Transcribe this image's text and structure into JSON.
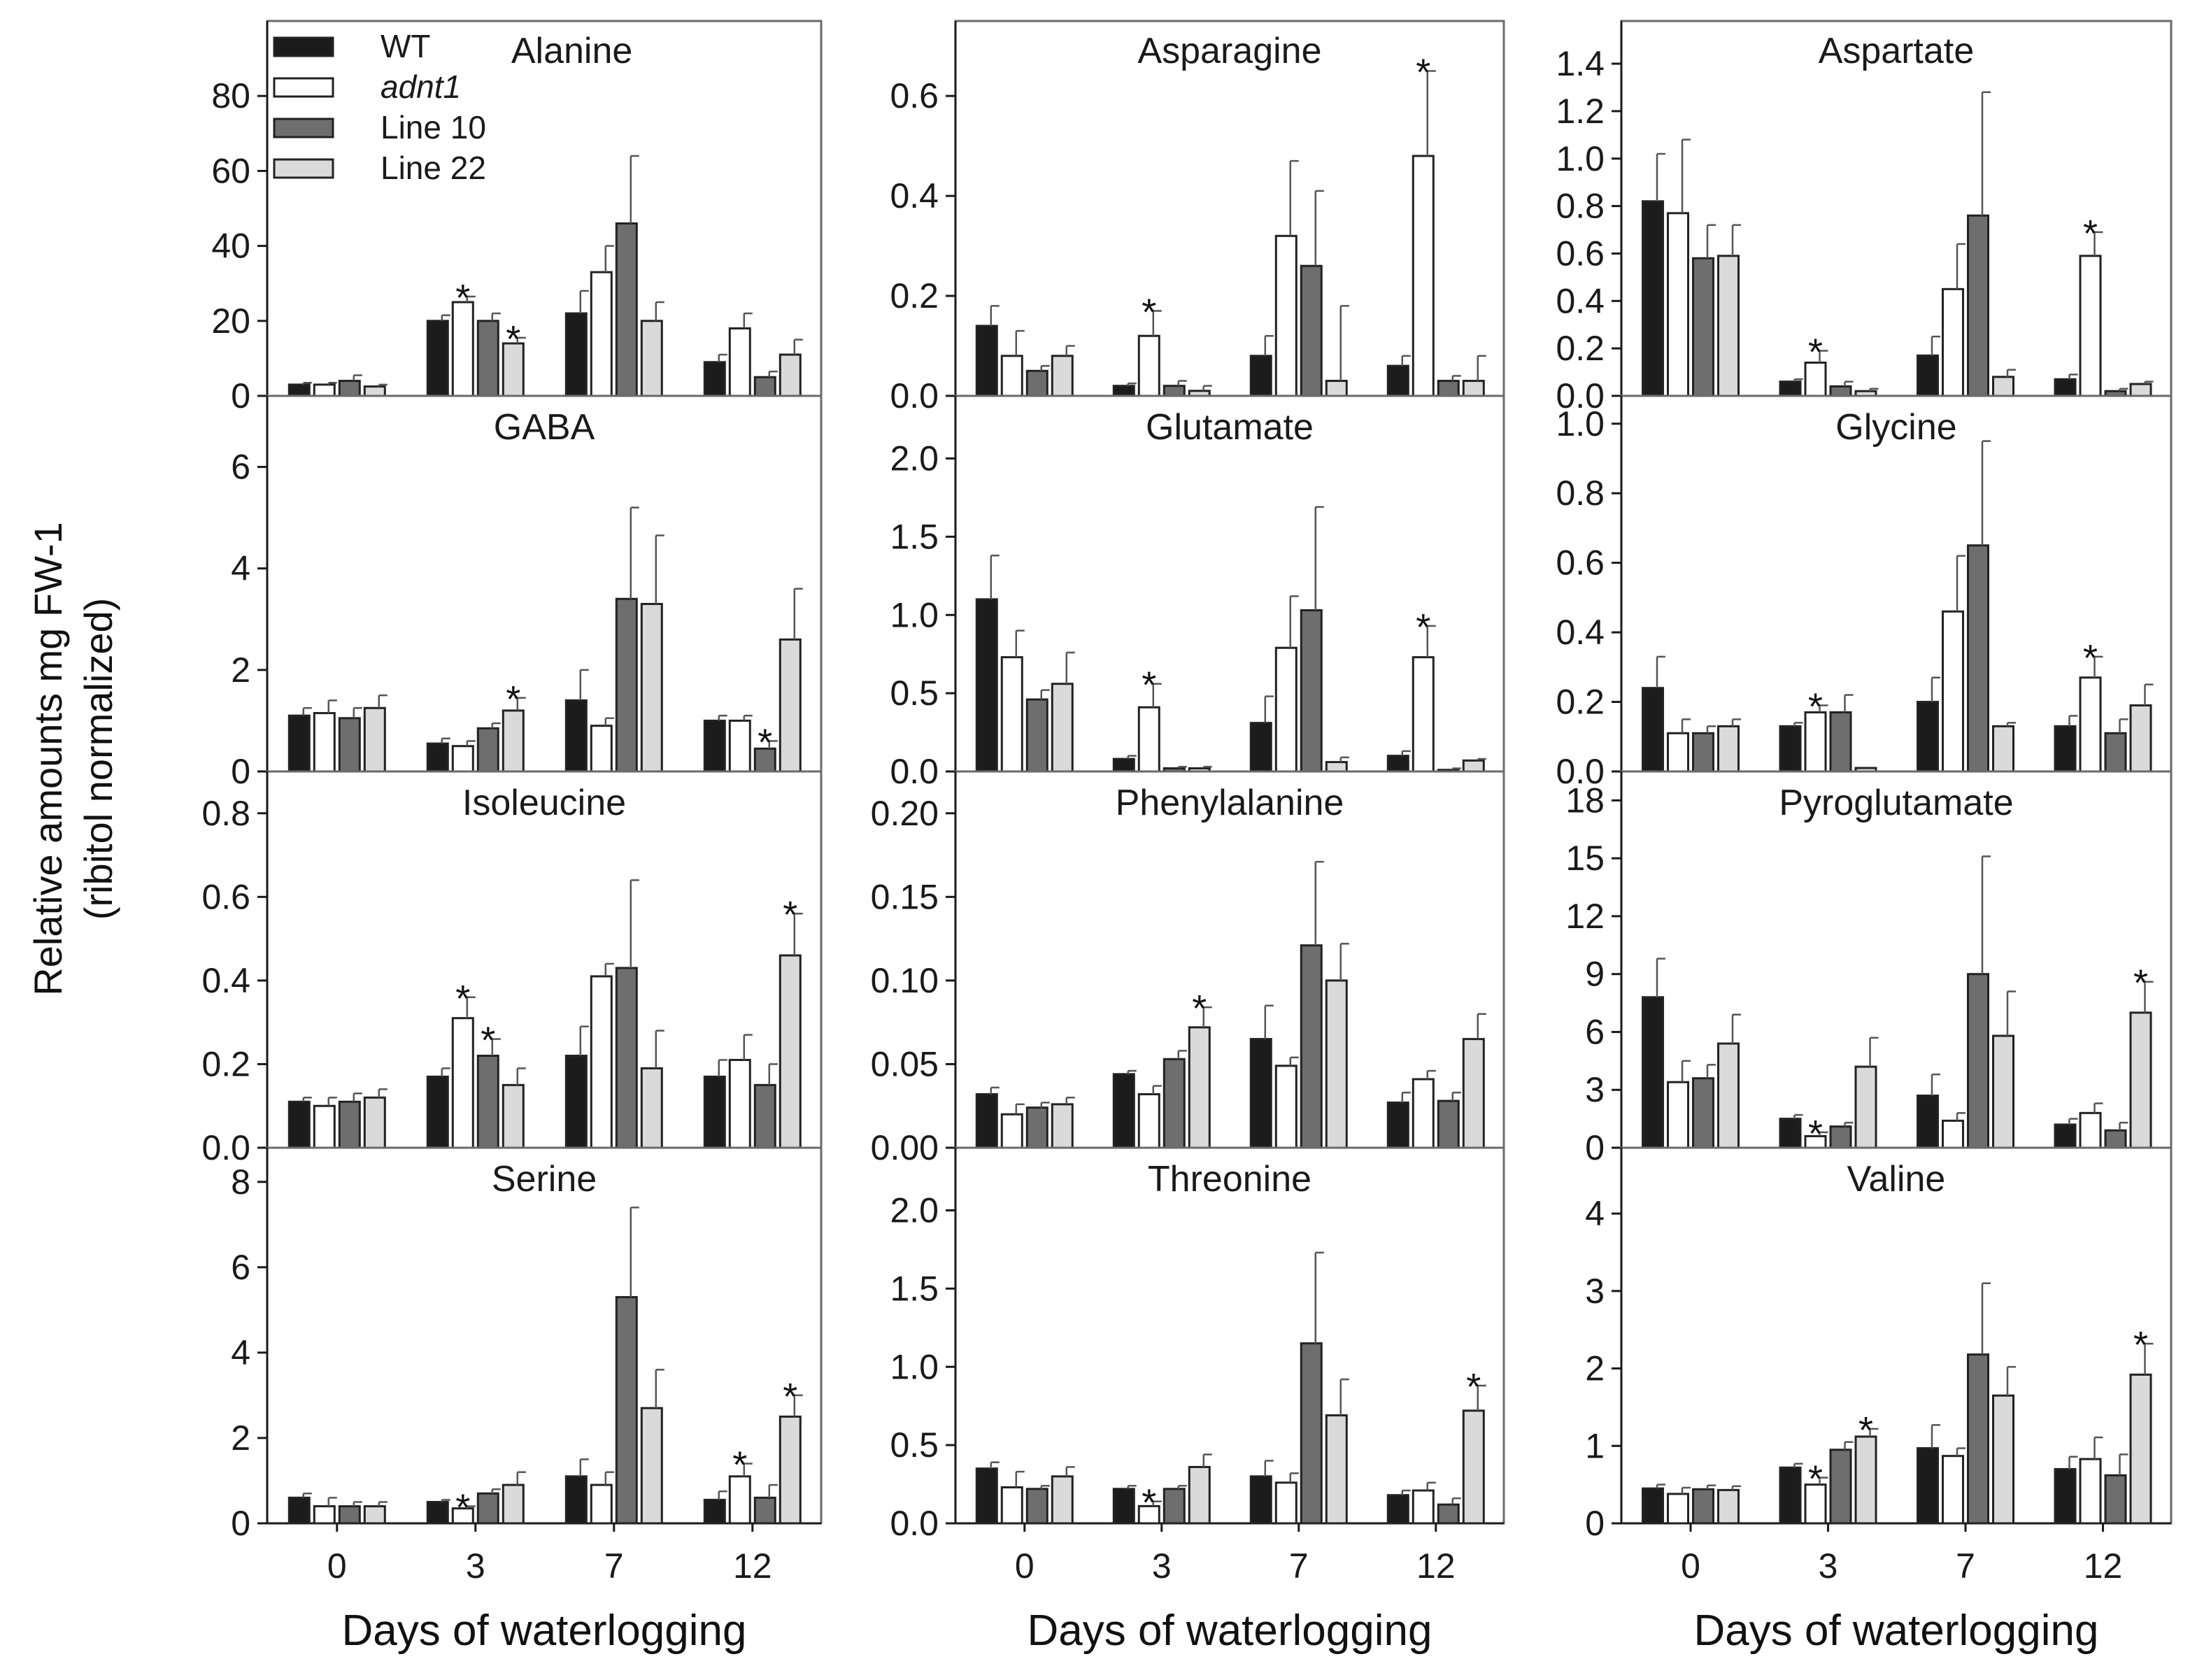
{
  "chart_data": {
    "type": "bar",
    "ylabel_line1": "Relative amounts mg FW-1",
    "ylabel_line2": "(ribitol normalized)",
    "xlabel": "Days of waterlogging",
    "categories": [
      "0",
      "3",
      "7",
      "12"
    ],
    "series": [
      {
        "name": "WT",
        "italic": false,
        "fill": "#1c1c1c"
      },
      {
        "name": "adnt1",
        "italic": true,
        "fill": "#ffffff"
      },
      {
        "name": "Line 10",
        "italic": false,
        "fill": "#6e6e6e"
      },
      {
        "name": "Line 22",
        "italic": false,
        "fill": "#dadada"
      }
    ],
    "panels": [
      {
        "title": "Alanine",
        "ylim": [
          0,
          100
        ],
        "yticks": [
          "0",
          "20",
          "40",
          "60",
          "80"
        ],
        "yvals": [
          0,
          20,
          40,
          60,
          80
        ],
        "values": [
          [
            3,
            3,
            4,
            2.5
          ],
          [
            20,
            25,
            20,
            14
          ],
          [
            22,
            33,
            46,
            20
          ],
          [
            9,
            18,
            5,
            11
          ]
        ],
        "errors": [
          [
            0.5,
            0.5,
            1.5,
            0.5
          ],
          [
            1.5,
            1.5,
            2,
            1.5
          ],
          [
            6,
            7,
            18,
            5
          ],
          [
            2,
            4,
            1.5,
            4
          ]
        ],
        "stars": [
          [
            false,
            false,
            false,
            false
          ],
          [
            false,
            true,
            false,
            true
          ],
          [
            false,
            false,
            false,
            false
          ],
          [
            false,
            false,
            false,
            false
          ]
        ]
      },
      {
        "title": "Asparagine",
        "ylim": [
          0,
          0.75
        ],
        "yticks": [
          "0.0",
          "0.2",
          "0.4",
          "0.6"
        ],
        "yvals": [
          0,
          0.2,
          0.4,
          0.6
        ],
        "values": [
          [
            0.14,
            0.08,
            0.05,
            0.08
          ],
          [
            0.02,
            0.12,
            0.02,
            0.01
          ],
          [
            0.08,
            0.32,
            0.26,
            0.03
          ],
          [
            0.06,
            0.48,
            0.03,
            0.03
          ]
        ],
        "errors": [
          [
            0.04,
            0.05,
            0.01,
            0.02
          ],
          [
            0.005,
            0.05,
            0.01,
            0.01
          ],
          [
            0.04,
            0.15,
            0.15,
            0.15
          ],
          [
            0.02,
            0.17,
            0.01,
            0.05
          ]
        ],
        "stars": [
          [
            false,
            false,
            false,
            false
          ],
          [
            false,
            true,
            false,
            false
          ],
          [
            false,
            false,
            false,
            false
          ],
          [
            false,
            true,
            false,
            false
          ]
        ]
      },
      {
        "title": "Aspartate",
        "ylim": [
          0,
          1.58
        ],
        "yticks": [
          "0.0",
          "0.2",
          "0.4",
          "0.6",
          "0.8",
          "1.0",
          "1.2",
          "1.4"
        ],
        "yvals": [
          0,
          0.2,
          0.4,
          0.6,
          0.8,
          1.0,
          1.2,
          1.4
        ],
        "values": [
          [
            0.82,
            0.77,
            0.58,
            0.59
          ],
          [
            0.06,
            0.14,
            0.04,
            0.02
          ],
          [
            0.17,
            0.45,
            0.76,
            0.08
          ],
          [
            0.07,
            0.59,
            0.02,
            0.05
          ]
        ],
        "errors": [
          [
            0.2,
            0.31,
            0.14,
            0.13
          ],
          [
            0.01,
            0.05,
            0.02,
            0.01
          ],
          [
            0.08,
            0.19,
            0.52,
            0.03
          ],
          [
            0.02,
            0.1,
            0.01,
            0.01
          ]
        ],
        "stars": [
          [
            false,
            false,
            false,
            false
          ],
          [
            false,
            true,
            false,
            false
          ],
          [
            false,
            false,
            false,
            false
          ],
          [
            false,
            true,
            false,
            false
          ]
        ]
      },
      {
        "title": "GABA",
        "ylim": [
          0,
          7.4
        ],
        "yticks": [
          "0",
          "2",
          "4",
          "6"
        ],
        "yvals": [
          0,
          2,
          4,
          6
        ],
        "values": [
          [
            1.1,
            1.15,
            1.05,
            1.25
          ],
          [
            0.55,
            0.5,
            0.85,
            1.2
          ],
          [
            1.4,
            0.9,
            3.4,
            3.3
          ],
          [
            1.0,
            1.0,
            0.45,
            2.6
          ]
        ],
        "errors": [
          [
            0.15,
            0.25,
            0.2,
            0.25
          ],
          [
            0.1,
            0.1,
            0.1,
            0.25
          ],
          [
            0.6,
            0.15,
            1.8,
            1.35
          ],
          [
            0.1,
            0.1,
            0.15,
            1.0
          ]
        ],
        "stars": [
          [
            false,
            false,
            false,
            false
          ],
          [
            false,
            false,
            false,
            true
          ],
          [
            false,
            false,
            false,
            false
          ],
          [
            false,
            false,
            true,
            false
          ]
        ]
      },
      {
        "title": "Glutamate",
        "ylim": [
          0,
          2.4
        ],
        "yticks": [
          "0.0",
          "0.5",
          "1.0",
          "1.5",
          "2.0"
        ],
        "yvals": [
          0,
          0.5,
          1.0,
          1.5,
          2.0
        ],
        "values": [
          [
            1.1,
            0.73,
            0.46,
            0.56
          ],
          [
            0.08,
            0.41,
            0.02,
            0.02
          ],
          [
            0.31,
            0.79,
            1.03,
            0.06
          ],
          [
            0.1,
            0.73,
            0.01,
            0.07
          ]
        ],
        "errors": [
          [
            0.28,
            0.17,
            0.06,
            0.2
          ],
          [
            0.02,
            0.15,
            0.01,
            0.01
          ],
          [
            0.17,
            0.33,
            0.66,
            0.03
          ],
          [
            0.03,
            0.2,
            0.01,
            0.01
          ]
        ],
        "stars": [
          [
            false,
            false,
            false,
            false
          ],
          [
            false,
            true,
            false,
            false
          ],
          [
            false,
            false,
            false,
            false
          ],
          [
            false,
            true,
            false,
            false
          ]
        ]
      },
      {
        "title": "Glycine",
        "ylim": [
          0,
          1.08
        ],
        "yticks": [
          "0.0",
          "0.2",
          "0.4",
          "0.6",
          "0.8",
          "1.0"
        ],
        "yvals": [
          0,
          0.2,
          0.4,
          0.6,
          0.8,
          1.0
        ],
        "values": [
          [
            0.24,
            0.11,
            0.11,
            0.13
          ],
          [
            0.13,
            0.17,
            0.17,
            0.01
          ],
          [
            0.2,
            0.46,
            0.65,
            0.13
          ],
          [
            0.13,
            0.27,
            0.11,
            0.19
          ]
        ],
        "errors": [
          [
            0.09,
            0.04,
            0.02,
            0.02
          ],
          [
            0.01,
            0.02,
            0.05,
            0.0
          ],
          [
            0.07,
            0.16,
            0.3,
            0.01
          ],
          [
            0.03,
            0.06,
            0.04,
            0.06
          ]
        ],
        "stars": [
          [
            false,
            false,
            false,
            false
          ],
          [
            false,
            true,
            false,
            false
          ],
          [
            false,
            false,
            false,
            false
          ],
          [
            false,
            true,
            false,
            false
          ]
        ]
      },
      {
        "title": "Isoleucine",
        "ylim": [
          0,
          0.9
        ],
        "yticks": [
          "0.0",
          "0.2",
          "0.4",
          "0.6",
          "0.8"
        ],
        "yvals": [
          0,
          0.2,
          0.4,
          0.6,
          0.8
        ],
        "values": [
          [
            0.11,
            0.1,
            0.11,
            0.12
          ],
          [
            0.17,
            0.31,
            0.22,
            0.15
          ],
          [
            0.22,
            0.41,
            0.43,
            0.19
          ],
          [
            0.17,
            0.21,
            0.15,
            0.46
          ]
        ],
        "errors": [
          [
            0.01,
            0.02,
            0.02,
            0.02
          ],
          [
            0.02,
            0.05,
            0.04,
            0.04
          ],
          [
            0.07,
            0.03,
            0.21,
            0.09
          ],
          [
            0.04,
            0.06,
            0.05,
            0.1
          ]
        ],
        "stars": [
          [
            false,
            false,
            false,
            false
          ],
          [
            false,
            true,
            true,
            false
          ],
          [
            false,
            false,
            false,
            false
          ],
          [
            false,
            false,
            false,
            true
          ]
        ]
      },
      {
        "title": "Phenylalanine",
        "ylim": [
          0,
          0.225
        ],
        "yticks": [
          "0.00",
          "0.05",
          "0.10",
          "0.15",
          "0.20"
        ],
        "yvals": [
          0,
          0.05,
          0.1,
          0.15,
          0.2
        ],
        "values": [
          [
            0.032,
            0.02,
            0.024,
            0.026
          ],
          [
            0.044,
            0.032,
            0.053,
            0.072
          ],
          [
            0.065,
            0.049,
            0.121,
            0.1
          ],
          [
            0.027,
            0.041,
            0.028,
            0.065
          ]
        ],
        "errors": [
          [
            0.004,
            0.006,
            0.003,
            0.004
          ],
          [
            0.002,
            0.005,
            0.005,
            0.012
          ],
          [
            0.02,
            0.005,
            0.05,
            0.022
          ],
          [
            0.006,
            0.005,
            0.005,
            0.015
          ]
        ],
        "stars": [
          [
            false,
            false,
            false,
            false
          ],
          [
            false,
            false,
            false,
            true
          ],
          [
            false,
            false,
            false,
            false
          ],
          [
            false,
            false,
            false,
            false
          ]
        ]
      },
      {
        "title": "Pyroglutamate",
        "ylim": [
          0,
          19.5
        ],
        "yticks": [
          "0",
          "3",
          "6",
          "9",
          "12",
          "15",
          "18"
        ],
        "yvals": [
          0,
          3,
          6,
          9,
          12,
          15,
          18
        ],
        "values": [
          [
            7.8,
            3.4,
            3.6,
            5.4
          ],
          [
            1.5,
            0.6,
            1.1,
            4.2
          ],
          [
            2.7,
            1.4,
            9.0,
            5.8
          ],
          [
            1.2,
            1.8,
            0.9,
            7.0
          ]
        ],
        "errors": [
          [
            2.0,
            1.1,
            0.7,
            1.5
          ],
          [
            0.2,
            0.2,
            0.2,
            1.5
          ],
          [
            1.1,
            0.4,
            6.1,
            2.3
          ],
          [
            0.3,
            0.5,
            0.4,
            1.6
          ]
        ],
        "stars": [
          [
            false,
            false,
            false,
            false
          ],
          [
            false,
            true,
            false,
            false
          ],
          [
            false,
            false,
            false,
            false
          ],
          [
            false,
            false,
            false,
            true
          ]
        ]
      },
      {
        "title": "Serine",
        "ylim": [
          0,
          8.8
        ],
        "yticks": [
          "0",
          "2",
          "4",
          "6",
          "8"
        ],
        "yvals": [
          0,
          2,
          4,
          6,
          8
        ],
        "values": [
          [
            0.6,
            0.4,
            0.4,
            0.4
          ],
          [
            0.5,
            0.35,
            0.7,
            0.9
          ],
          [
            1.1,
            0.9,
            5.3,
            2.7
          ],
          [
            0.55,
            1.1,
            0.6,
            2.5
          ]
        ],
        "errors": [
          [
            0.1,
            0.2,
            0.1,
            0.1
          ],
          [
            0.05,
            0.05,
            0.1,
            0.3
          ],
          [
            0.4,
            0.3,
            2.1,
            0.9
          ],
          [
            0.2,
            0.3,
            0.3,
            0.5
          ]
        ],
        "stars": [
          [
            false,
            false,
            false,
            false
          ],
          [
            false,
            true,
            false,
            false
          ],
          [
            false,
            false,
            false,
            false
          ],
          [
            false,
            true,
            false,
            true
          ]
        ]
      },
      {
        "title": "Threonine",
        "ylim": [
          0,
          2.4
        ],
        "yticks": [
          "0.0",
          "0.5",
          "1.0",
          "1.5",
          "2.0"
        ],
        "yvals": [
          0,
          0.5,
          1.0,
          1.5,
          2.0
        ],
        "values": [
          [
            0.35,
            0.23,
            0.22,
            0.3
          ],
          [
            0.22,
            0.11,
            0.22,
            0.36
          ],
          [
            0.3,
            0.26,
            1.15,
            0.69
          ],
          [
            0.18,
            0.21,
            0.12,
            0.72
          ]
        ],
        "errors": [
          [
            0.04,
            0.1,
            0.02,
            0.06
          ],
          [
            0.02,
            0.03,
            0.02,
            0.08
          ],
          [
            0.1,
            0.06,
            0.58,
            0.23
          ],
          [
            0.03,
            0.05,
            0.04,
            0.16
          ]
        ],
        "stars": [
          [
            false,
            false,
            false,
            false
          ],
          [
            false,
            true,
            false,
            false
          ],
          [
            false,
            false,
            false,
            false
          ],
          [
            false,
            false,
            false,
            true
          ]
        ]
      },
      {
        "title": "Valine",
        "ylim": [
          0,
          4.85
        ],
        "yticks": [
          "0",
          "1",
          "2",
          "3",
          "4"
        ],
        "yvals": [
          0,
          1,
          2,
          3,
          4
        ],
        "values": [
          [
            0.45,
            0.38,
            0.44,
            0.43
          ],
          [
            0.72,
            0.5,
            0.95,
            1.12
          ],
          [
            0.97,
            0.87,
            2.18,
            1.65
          ],
          [
            0.7,
            0.83,
            0.62,
            1.92
          ]
        ],
        "errors": [
          [
            0.05,
            0.08,
            0.05,
            0.05
          ],
          [
            0.05,
            0.09,
            0.1,
            0.1
          ],
          [
            0.3,
            0.1,
            0.92,
            0.37
          ],
          [
            0.16,
            0.28,
            0.27,
            0.4
          ]
        ],
        "stars": [
          [
            false,
            false,
            false,
            false
          ],
          [
            false,
            true,
            false,
            true
          ],
          [
            false,
            false,
            false,
            false
          ],
          [
            false,
            false,
            false,
            true
          ]
        ]
      }
    ]
  }
}
